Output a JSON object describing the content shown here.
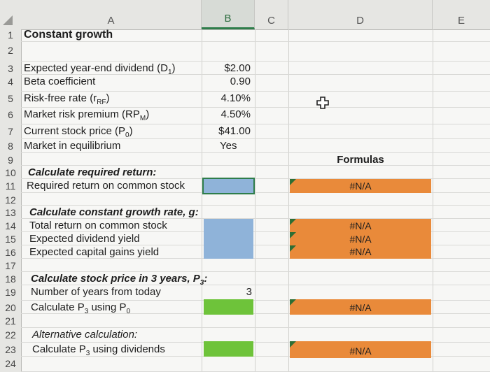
{
  "columns": {
    "a": "A",
    "b": "B",
    "c": "C",
    "d": "D",
    "e": "E"
  },
  "rows": [
    "1",
    "2",
    "3",
    "4",
    "5",
    "6",
    "7",
    "8",
    "9",
    "10",
    "11",
    "12",
    "13",
    "14",
    "15",
    "16",
    "17",
    "18",
    "19",
    "20",
    "21",
    "22",
    "23",
    "24"
  ],
  "labels": {
    "title": "Constant growth",
    "dividend": "Expected year-end dividend (D",
    "dividend_sub": "1",
    "beta": "Beta coefficient",
    "rf": "Risk-free rate (r",
    "rf_sub": "RF",
    "mrp": "Market risk premium (RP",
    "mrp_sub": "M",
    "price": "Current stock price (P",
    "price_sub": "0",
    "equilibrium": "Market in equilibrium",
    "calc_required": "Calculate required return:",
    "required_return": "Required return on common stock",
    "calc_growth": "Calculate constant growth rate, g:",
    "total_return": "Total return on common stock",
    "div_yield": "Expected dividend yield",
    "cap_gains": "Expected capital gains yield",
    "calc_price3": "Calculate stock price in 3 years, P",
    "calc_price3_sub": "3",
    "num_years": "Number of years from today",
    "calc_p3_p0": "Calculate P",
    "calc_p3_p0_sub": "3",
    "calc_p3_p0_tail": " using P",
    "calc_p3_p0_tail_sub": "0",
    "alt_calc": "Alternative calculation:",
    "calc_p3_div": "Calculate P",
    "calc_p3_div_sub": "3",
    "calc_p3_div_tail": " using dividends"
  },
  "values": {
    "dividend": "$2.00",
    "beta": "0.90",
    "rf": "4.10%",
    "mrp": "4.50%",
    "price": "$41.00",
    "equilibrium": "Yes",
    "years": "3"
  },
  "formulas": {
    "header": "Formulas",
    "required_return": "#N/A",
    "total_return": "#N/A",
    "div_yield": "#N/A",
    "cap_gains": "#N/A",
    "p3_p0": "#N/A",
    "p3_div": "#N/A"
  },
  "colors": {
    "input_blue": "#8fb3d9",
    "input_green": "#6ec33a",
    "formula_orange": "#e98a3a",
    "selection": "#2e7d4a"
  },
  "icons": {
    "cursor": "plus-cursor-icon"
  }
}
